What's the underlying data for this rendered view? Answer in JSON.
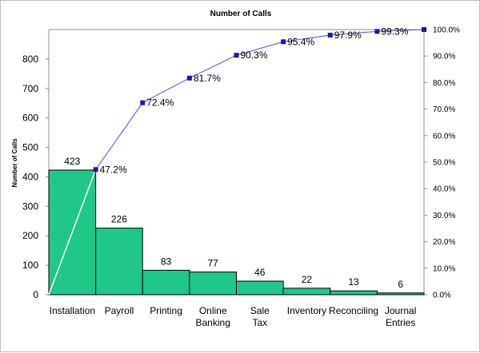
{
  "chart_data": {
    "type": "bar",
    "title": "Number of Calls",
    "ylabel": "Number of Calls",
    "xlabel": "",
    "categories": [
      "Installation",
      "Payroll",
      "Printing",
      "Online Banking",
      "Sale Tax",
      "Inventory",
      "Reconciling",
      "Journal Entries"
    ],
    "values": [
      423,
      226,
      83,
      77,
      46,
      22,
      13,
      6
    ],
    "cumulative_percent": [
      "47.2%",
      "72.4%",
      "81.7%",
      "90.3%",
      "95.4%",
      "97.9%",
      "99.3%",
      "100.0%"
    ],
    "cumulative_values": [
      47.2,
      72.4,
      81.7,
      90.3,
      95.4,
      97.9,
      99.3,
      100.0
    ],
    "cumulative_labels_shown": [
      true,
      true,
      true,
      true,
      true,
      true,
      true,
      false
    ],
    "ylim": [
      0,
      900
    ],
    "yticks": [
      "0",
      "100",
      "200",
      "300",
      "400",
      "500",
      "600",
      "700",
      "800"
    ],
    "y2lim": [
      0,
      100
    ],
    "y2ticks": [
      "0.0%",
      "10.0%",
      "20.0%",
      "30.0%",
      "40.0%",
      "50.0%",
      "60.0%",
      "70.0%",
      "80.0%",
      "90.0%",
      "100.0%"
    ],
    "grid": false,
    "legend": "none",
    "colors": {
      "bars": "#1fc889",
      "bar_border": "#000000",
      "line": "#6b6be0",
      "markers": "#1a1aaa",
      "diagonal": "#ffffff"
    }
  }
}
